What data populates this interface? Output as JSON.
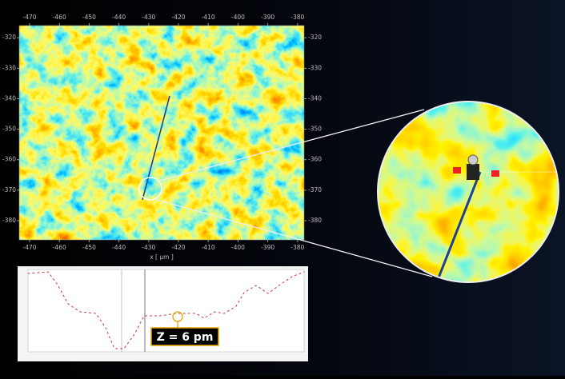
{
  "chart_data": {
    "type": "heatmap",
    "x_label": "x [ µm ]",
    "xlim": [
      -473.5,
      -377.8
    ],
    "xticks": [
      -470,
      -460,
      -450,
      -440,
      -430,
      -420,
      -410,
      -400,
      -390,
      -380
    ],
    "ylim": [
      -386.3,
      -316
    ],
    "yticks": [
      -320,
      -330,
      -340,
      -350,
      -360,
      -370,
      -380
    ],
    "annotations": [
      "Z = 6 pm"
    ]
  }
}
